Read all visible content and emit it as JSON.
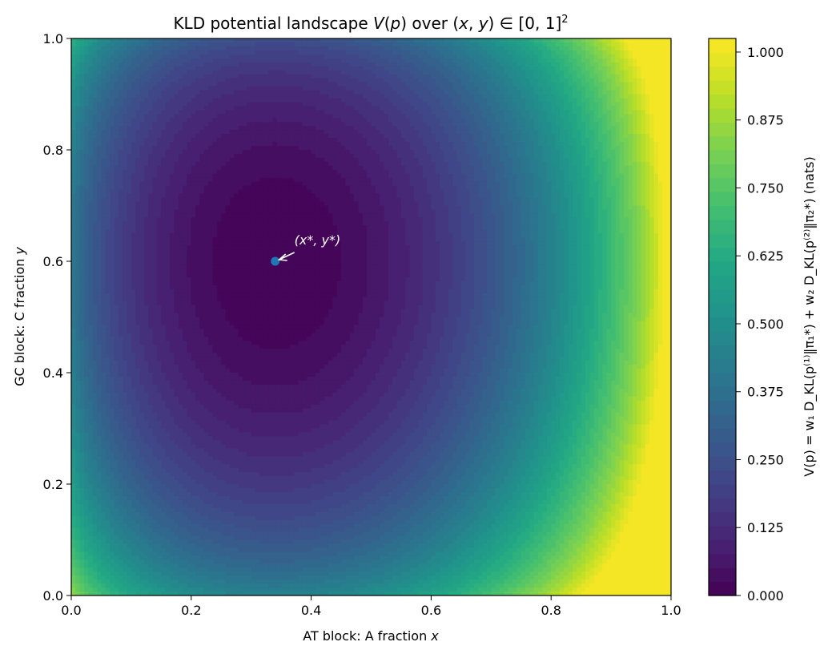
{
  "chart_data": {
    "type": "contour",
    "title_parts": {
      "pre": "KLD potential landscape ",
      "v": "V",
      "paren_open": "(",
      "p": "p",
      "paren_close": ")",
      "mid": " over (",
      "x": "x",
      "comma": ", ",
      "y": "y",
      "post": ") ∈ [0, 1]",
      "sup": "2"
    },
    "xlabel_parts": {
      "pre": "AT block: A fraction ",
      "var": "x"
    },
    "ylabel_parts": {
      "pre": "GC block: C fraction ",
      "var": "y"
    },
    "xlim": [
      0.0,
      1.0
    ],
    "ylim": [
      0.0,
      1.0
    ],
    "x_ticks": [
      "0.0",
      "0.2",
      "0.4",
      "0.6",
      "0.8",
      "1.0"
    ],
    "y_ticks": [
      "0.0",
      "0.2",
      "0.4",
      "0.6",
      "0.8",
      "1.0"
    ],
    "colorbar": {
      "colormap": "viridis",
      "range": [
        0.0,
        1.025
      ],
      "ticks": [
        "0.000",
        "0.125",
        "0.250",
        "0.375",
        "0.500",
        "0.625",
        "0.750",
        "0.875",
        "1.000"
      ],
      "label": "V(p) = w₁ D_KL(p⁽¹⁾‖π₁*) + w₂ D_KL(p⁽²⁾‖π₂*) (nats)"
    },
    "minimum": {
      "x": 0.34,
      "y": 0.6,
      "label": "(x*, y*)",
      "color": "#1f77b4"
    },
    "grid": false
  }
}
